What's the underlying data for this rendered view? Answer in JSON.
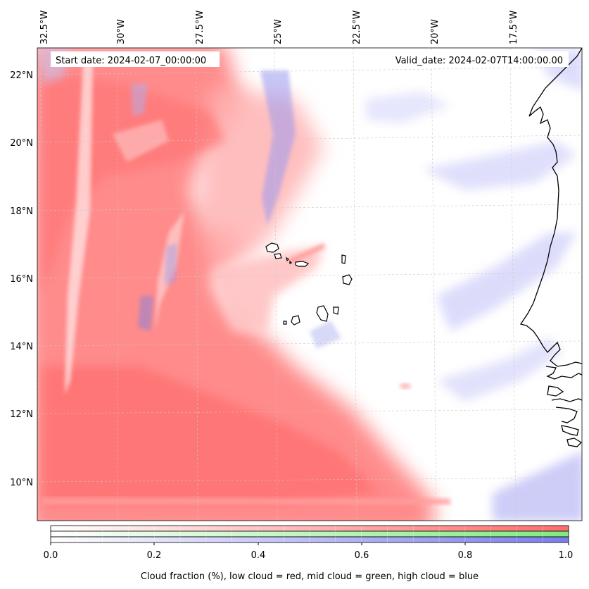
{
  "map": {
    "start_date": "Start date: 2024-02-07_00:00:00",
    "valid_date": "Valid_date: 2024-02-07T14:00:00.00",
    "lon_labels": [
      "32.5°W",
      "30°W",
      "27.5°W",
      "25°W",
      "22.5°W",
      "20°W",
      "17.5°W"
    ],
    "lat_labels": [
      "22°N",
      "20°N",
      "18°N",
      "16°N",
      "14°N",
      "12°N",
      "10°N"
    ],
    "colors": {
      "low_cloud": "#ff7a7a",
      "mid_cloud": "#8aee8a",
      "high_cloud": "#8a8aee",
      "coastline": "#000000",
      "gridline": "#c8c8c8"
    }
  },
  "colorbar": {
    "ticks": [
      "0.0",
      "0.2",
      "0.4",
      "0.6",
      "0.8",
      "1.0"
    ],
    "label": "Cloud fraction (%), low cloud = red, mid cloud = green, high cloud = blue"
  }
}
